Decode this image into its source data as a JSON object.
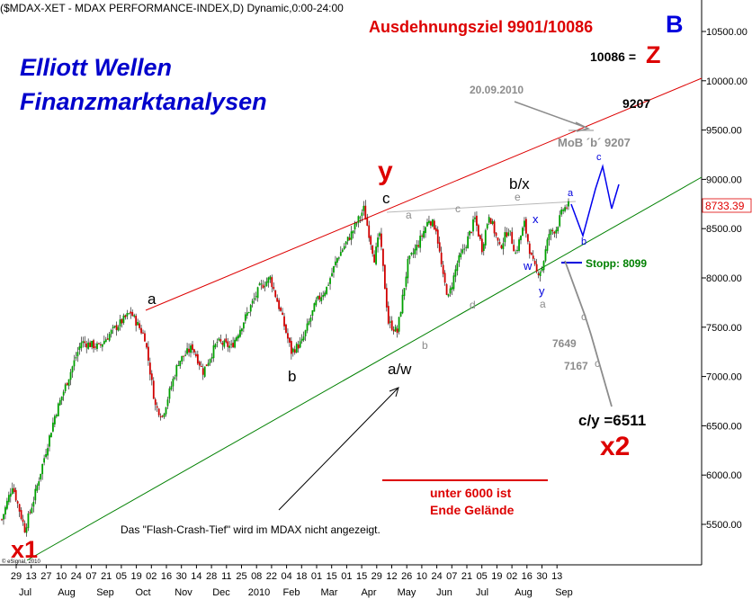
{
  "header": {
    "instrument": "($MDAX-XET - MDAX PERFORMANCE-INDEX,D) Dynamic,0:00-24:00",
    "title_line1": "Elliott Wellen",
    "title_line2": "Finanzmarktanalysen",
    "copyright": "© eSignal, 2010"
  },
  "chart_data": {
    "type": "candlestick",
    "y_axis": {
      "range": [
        5150,
        10700
      ],
      "ticks": [
        "5500.00",
        "6000.00",
        "6500.00",
        "7000.00",
        "7500.00",
        "8000.00",
        "8500.00",
        "9000.00",
        "9500.00",
        "10000.00",
        "10500.00"
      ],
      "last_price": "8733.39",
      "last_price_color": "#e00000"
    },
    "x_axis": {
      "day_ticks": [
        "29",
        "13",
        "27",
        "10",
        "24",
        "07",
        "21",
        "05",
        "19",
        "02",
        "16",
        "30",
        "14",
        "28",
        "11",
        "25",
        "08",
        "22",
        "04",
        "18",
        "01",
        "15",
        "01",
        "15",
        "29",
        "12",
        "26",
        "10",
        "24",
        "07",
        "21",
        "05",
        "19",
        "02",
        "16",
        "30",
        "13"
      ],
      "month_labels": [
        "Jul",
        "Aug",
        "Sep",
        "Oct",
        "Nov",
        "Dec",
        "2010",
        "Feb",
        "Mar",
        "Apr",
        "May",
        "Jun",
        "Jul",
        "Aug",
        "Sep"
      ]
    },
    "price_path_keypoints": [
      {
        "i": 0,
        "v": 5550
      },
      {
        "i": 6,
        "v": 5900
      },
      {
        "i": 13,
        "v": 5450
      },
      {
        "i": 18,
        "v": 5750
      },
      {
        "i": 30,
        "v": 6600
      },
      {
        "i": 45,
        "v": 7350
      },
      {
        "i": 55,
        "v": 7300
      },
      {
        "i": 62,
        "v": 7450
      },
      {
        "i": 73,
        "v": 7650
      },
      {
        "i": 81,
        "v": 7400
      },
      {
        "i": 87,
        "v": 6700
      },
      {
        "i": 91,
        "v": 6600
      },
      {
        "i": 100,
        "v": 7150
      },
      {
        "i": 108,
        "v": 7300
      },
      {
        "i": 114,
        "v": 7050
      },
      {
        "i": 122,
        "v": 7350
      },
      {
        "i": 130,
        "v": 7300
      },
      {
        "i": 138,
        "v": 7600
      },
      {
        "i": 146,
        "v": 7900
      },
      {
        "i": 152,
        "v": 8000
      },
      {
        "i": 158,
        "v": 7650
      },
      {
        "i": 164,
        "v": 7250
      },
      {
        "i": 170,
        "v": 7350
      },
      {
        "i": 178,
        "v": 7750
      },
      {
        "i": 184,
        "v": 7900
      },
      {
        "i": 190,
        "v": 8200
      },
      {
        "i": 198,
        "v": 8450
      },
      {
        "i": 205,
        "v": 8700
      },
      {
        "i": 211,
        "v": 8200
      },
      {
        "i": 214,
        "v": 8450
      },
      {
        "i": 219,
        "v": 7550
      },
      {
        "i": 224,
        "v": 7450
      },
      {
        "i": 230,
        "v": 8150
      },
      {
        "i": 236,
        "v": 8350
      },
      {
        "i": 242,
        "v": 8600
      },
      {
        "i": 246,
        "v": 8500
      },
      {
        "i": 250,
        "v": 8000
      },
      {
        "i": 253,
        "v": 7800
      },
      {
        "i": 258,
        "v": 8150
      },
      {
        "i": 262,
        "v": 8300
      },
      {
        "i": 268,
        "v": 8600
      },
      {
        "i": 272,
        "v": 8300
      },
      {
        "i": 276,
        "v": 8650
      },
      {
        "i": 282,
        "v": 8300
      },
      {
        "i": 287,
        "v": 8500
      },
      {
        "i": 291,
        "v": 8250
      },
      {
        "i": 296,
        "v": 8550
      },
      {
        "i": 300,
        "v": 8200
      },
      {
        "i": 303,
        "v": 8050
      },
      {
        "i": 306,
        "v": 8100
      },
      {
        "i": 310,
        "v": 8450
      },
      {
        "i": 314,
        "v": 8500
      },
      {
        "i": 318,
        "v": 8700
      },
      {
        "i": 321,
        "v": 8733
      }
    ],
    "trend_lines": {
      "upper_channel": {
        "color": "#dd0000"
      },
      "lower_channel": {
        "color": "#008000"
      },
      "resistance": {
        "color": "#b8b8b8"
      }
    },
    "scenario_path_color": "#0000ee"
  },
  "annotations": {
    "target": "Ausdehnungsziel 9901/10086",
    "target_wave": "B",
    "level_10086": "10086 =",
    "level_10086_wave": "Z",
    "date_label": "20.09.2010",
    "mob_label": "MoB ´b´ 9207",
    "level_9207": "9207",
    "wave_y_red": "y",
    "wave_c": "c",
    "wave_bx": "b/x",
    "wave_e": "e",
    "wave_a_gray_top": "a",
    "wave_c_gray_top": "c",
    "wave_x_blue": "x",
    "wave_w_blue": "w",
    "wave_y_blue": "y",
    "wave_a_gray_low": "a",
    "wave_d_gray": "d",
    "wave_b_gray": "b",
    "wave_a_black": "a",
    "wave_b_black": "b",
    "wave_aw": "a/w",
    "scen_a": "a",
    "scen_b": "b",
    "scen_c": "c",
    "stopp": "Stopp: 8099",
    "level_7649": "7649",
    "level_7167": "7167",
    "proj_c1": "c",
    "proj_c2": "c",
    "cy_target": "c/y =6511",
    "wave_x2": "x2",
    "wave_x1": "x1",
    "unter_line1": "unter 6000 ist",
    "unter_line2": "Ende Gelände",
    "flash_crash": "Das \"Flash-Crash-Tief\" wird im MDAX nicht angezeigt."
  }
}
